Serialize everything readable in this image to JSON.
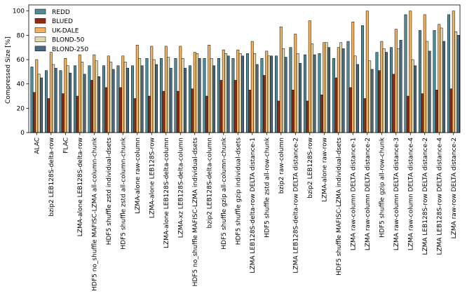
{
  "chart_data": {
    "type": "bar",
    "title": "",
    "xlabel": "",
    "ylabel": "Compressed Size [%]",
    "ylim": [
      0,
      105
    ],
    "yticks": [
      0,
      20,
      40,
      60,
      80,
      100
    ],
    "grid": false,
    "legend_position": "top-left",
    "categories": [
      "ALAC",
      "bzip2 LEB128S-delta-row",
      "FLAC",
      "LZMA-alone LEB128S-delta-row",
      "HDF5 no_shuffle MAFISC-LZMA all-column-chunk",
      "HDF5 shuffle zstd individual-dsets",
      "HDF5 shuffle zstd all-column-chunk",
      "LZMA-alone raw-column",
      "LZMA-alone LEB128S-row",
      "LZMA-alone LEB128S-delta-column",
      "LZMA-xz LEB128S-delta-column",
      "HDF5 no_shuffle MAFISC-LZMA individual-dsets",
      "bzip2 LEB128S-delta-column",
      "HDF5 shuffle gzip all-column-chunk",
      "HDF5 shuffle gzip individual-dsets",
      "LZMA LEB128S-delta-row DELTA distance-1",
      "HDF5 shuffle zstd all-row-chunk",
      "bzip2 raw-column",
      "LZMA LEB128S-delta-row DELTA distance-2",
      "bzip2 LEB128S-row",
      "LZMA-alone raw-row",
      "HDF5 shuffle MAFISC-LZMA individual-dsets",
      "LZMA raw-column DELTA distance-1",
      "LZMA raw-column DELTA distance-2",
      "HDF5 shuffle gzip all-row-chunk",
      "LZMA raw-column DELTA distance-3",
      "LZMA raw-column DELTA distance-4",
      "LZMA LEB128S-row DELTA distance-2",
      "LZMA LEB128S-row DELTA distance-4",
      "LZMA raw-row DELTA distance-2"
    ],
    "series": [
      {
        "name": "REDD",
        "color": "#4d8c98",
        "values": [
          54,
          51,
          51,
          55,
          55,
          55,
          55,
          55,
          61,
          61,
          61,
          55,
          61,
          61,
          61,
          65,
          61,
          63,
          70,
          64,
          65,
          61,
          75,
          88,
          66,
          70,
          97,
          84,
          84,
          97
        ]
      },
      {
        "name": "BLUED",
        "color": "#8f2d14",
        "values": [
          33,
          28,
          32,
          30,
          43,
          37,
          37,
          28,
          30,
          34,
          34,
          36,
          30,
          43,
          43,
          35,
          47,
          26,
          35,
          26,
          31,
          45,
          37,
          28,
          51,
          48,
          30,
          32,
          35,
          36
        ]
      },
      {
        "name": "UK-DALE",
        "color": "#f5b25a",
        "values": [
          60,
          66,
          61,
          64,
          64,
          63,
          63,
          72,
          71,
          71,
          71,
          66,
          72,
          68,
          68,
          75,
          67,
          87,
          81,
          92,
          74,
          70,
          91,
          100,
          75,
          85,
          100,
          97,
          89,
          100
        ]
      },
      {
        "name": "BLOND-50",
        "color": "#e2d8ae",
        "values": [
          48,
          56,
          55,
          58,
          59,
          58,
          58,
          61,
          60,
          62,
          61,
          65,
          61,
          65,
          65,
          65,
          63,
          69,
          65,
          73,
          74,
          74,
          63,
          59,
          69,
          69,
          60,
          75,
          86,
          83
        ]
      },
      {
        "name": "BLOND-250",
        "color": "#4a6880",
        "values": [
          45,
          53,
          49,
          48,
          46,
          52,
          53,
          55,
          56,
          53,
          53,
          61,
          55,
          63,
          63,
          56,
          63,
          62,
          57,
          64,
          70,
          69,
          56,
          52,
          66,
          76,
          55,
          67,
          75,
          80
        ]
      }
    ]
  }
}
